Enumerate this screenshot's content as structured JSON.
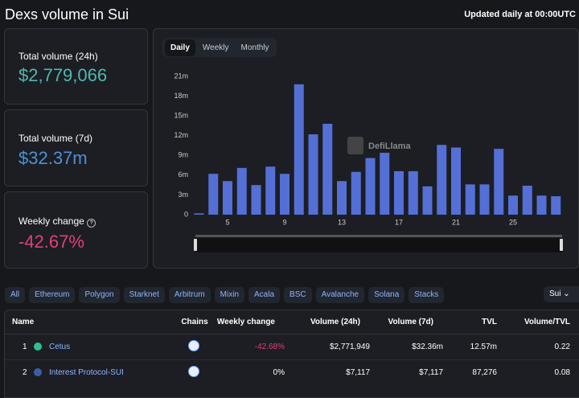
{
  "header": {
    "title": "Dexs volume in Sui",
    "updated": "Updated daily at 00:00UTC"
  },
  "stats": [
    {
      "label": "Total volume (24h)",
      "value": "$2,779,066"
    },
    {
      "label": "Total volume (7d)",
      "value": "$32.37m"
    },
    {
      "label": "Weekly change",
      "value": "-42.67%"
    }
  ],
  "toggle": [
    "Daily",
    "Weekly",
    "Monthly"
  ],
  "watermark": "DefiLlama",
  "chart_data": {
    "type": "bar",
    "color": "#5470d6",
    "categories": [
      null,
      null,
      "5",
      null,
      null,
      null,
      "9",
      null,
      null,
      null,
      "13",
      null,
      null,
      null,
      "17",
      null,
      null,
      null,
      "21",
      null,
      null,
      null,
      "25",
      null,
      null,
      null
    ],
    "values": [
      0.2,
      6.2,
      5.1,
      7.1,
      4.5,
      7.3,
      6.2,
      19.8,
      12.2,
      13.8,
      5.1,
      6.5,
      8.6,
      9.4,
      6.6,
      6.6,
      4.3,
      10.6,
      10.2,
      4.6,
      4.6,
      10.0,
      2.9,
      4.4,
      2.9,
      2.8
    ],
    "ylim": [
      0,
      21
    ],
    "yticks": [
      0,
      {
        "value": 3,
        "label": "3m"
      },
      {
        "value": 6,
        "label": "6m"
      },
      {
        "value": 9,
        "label": "9m"
      },
      {
        "value": 12,
        "label": "12m"
      },
      {
        "value": 15,
        "label": "15m"
      },
      {
        "value": 18,
        "label": "18m"
      },
      {
        "value": 21,
        "label": "21m"
      }
    ]
  },
  "chains": [
    "All",
    "Ethereum",
    "Polygon",
    "Starknet",
    "Arbitrum",
    "Mixin",
    "Acala",
    "BSC",
    "Avalanche",
    "Solana",
    "Stacks"
  ],
  "chain_select": "Sui",
  "table": {
    "columns": [
      "Name",
      "Chains",
      "Weekly change",
      "Volume (24h)",
      "Volume (7d)",
      "TVL",
      "Volume/TVL"
    ],
    "rows": [
      [
        "1",
        "Cetus",
        "-42.68%",
        "$2,771,949",
        "$32.36m",
        "12.57m",
        "0.22"
      ],
      [
        "2",
        "Interest Protocol-SUI",
        "0%",
        "$7,117",
        "$7,117",
        "87,276",
        "0.08"
      ]
    ]
  }
}
